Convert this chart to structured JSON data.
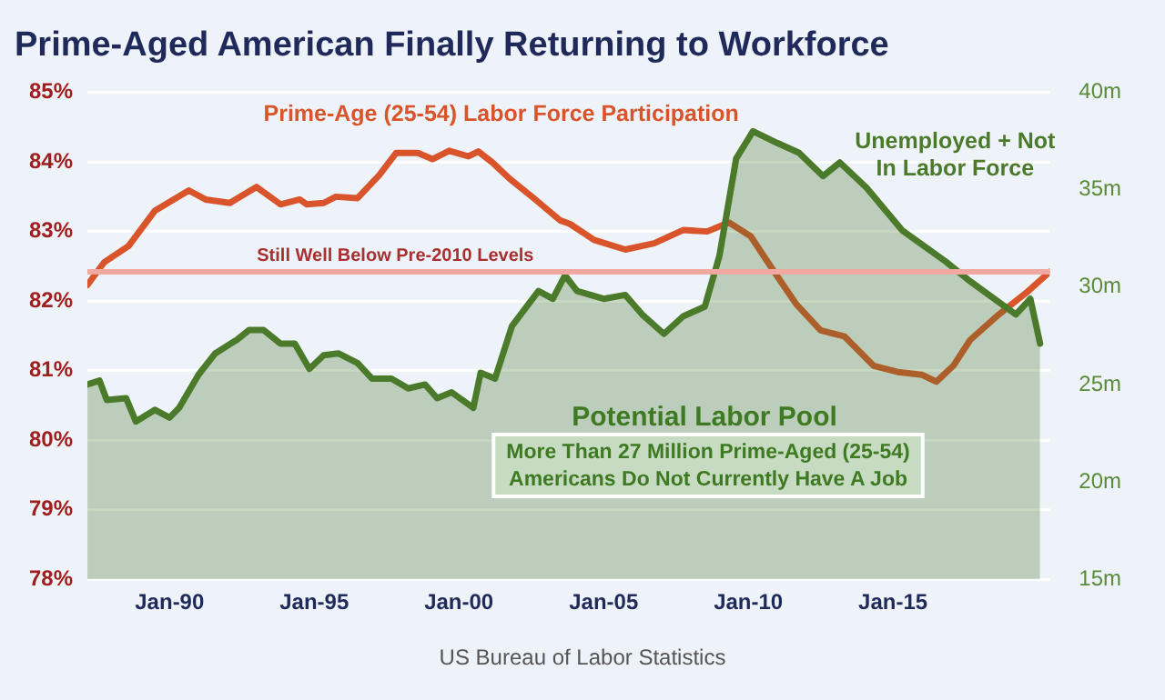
{
  "chart_data": {
    "type": "line",
    "title": "Prime-Aged American Finally Returning to Workforce",
    "xlim": [
      "1987-03",
      "2020-06"
    ],
    "xticks": [
      {
        "value": "1990-01",
        "label": "Jan-90"
      },
      {
        "value": "1995-01",
        "label": "Jan-95"
      },
      {
        "value": "2000-01",
        "label": "Jan-00"
      },
      {
        "value": "2005-01",
        "label": "Jan-05"
      },
      {
        "value": "2010-01",
        "label": "Jan-10"
      },
      {
        "value": "2015-01",
        "label": "Jan-15"
      }
    ],
    "ylim": [
      78,
      85
    ],
    "yticks": [
      {
        "value": 78,
        "label": "78%"
      },
      {
        "value": 79,
        "label": "79%"
      },
      {
        "value": 80,
        "label": "80%"
      },
      {
        "value": 81,
        "label": "81%"
      },
      {
        "value": 82,
        "label": "82%"
      },
      {
        "value": 83,
        "label": "83%"
      },
      {
        "value": 84,
        "label": "84%"
      },
      {
        "value": 85,
        "label": "85%"
      }
    ],
    "y2lim": [
      15,
      40
    ],
    "y2ticks": [
      {
        "value": 15,
        "label": "15m"
      },
      {
        "value": 20,
        "label": "20m"
      },
      {
        "value": 25,
        "label": "25m"
      },
      {
        "value": 30,
        "label": "30m"
      },
      {
        "value": 35,
        "label": "35m"
      },
      {
        "value": 40,
        "label": "40m"
      }
    ],
    "grid": "y",
    "legend": false,
    "marker": "none",
    "series": [
      {
        "type": "area",
        "axis": "y2",
        "name": "Unemployed + Not In Labor Force",
        "color": "#4a7a2a",
        "x": [
          "1987-03",
          "1987-08",
          "1987-11",
          "1988-07",
          "1988-11",
          "1989-07",
          "1990-01",
          "1990-05",
          "1991-01",
          "1991-08",
          "1992-05",
          "1992-10",
          "1993-04",
          "1993-11",
          "1994-05",
          "1994-11",
          "1995-05",
          "1995-11",
          "1996-07",
          "1997-01",
          "1997-09",
          "1998-04",
          "1998-11",
          "1999-04",
          "1999-10",
          "2000-07",
          "2000-10",
          "2001-04",
          "2001-11",
          "2002-10",
          "2003-04",
          "2003-09",
          "2004-02",
          "2005-01",
          "2005-10",
          "2006-05",
          "2007-02",
          "2007-10",
          "2008-07",
          "2009-01",
          "2009-08",
          "2010-03",
          "2011-01",
          "2011-10",
          "2012-08",
          "2013-03",
          "2014-02",
          "2015-05",
          "2016-02",
          "2016-11",
          "2017-09",
          "2018-07",
          "2019-04",
          "2019-10",
          "2020-02"
        ],
        "values": [
          25.0,
          25.2,
          24.2,
          24.3,
          23.1,
          23.7,
          23.3,
          23.8,
          25.5,
          26.6,
          27.3,
          27.8,
          27.8,
          27.1,
          27.1,
          25.8,
          26.5,
          26.6,
          26.1,
          25.3,
          25.3,
          24.8,
          25.0,
          24.3,
          24.6,
          23.8,
          25.6,
          25.3,
          28.0,
          29.8,
          29.4,
          30.6,
          29.8,
          29.4,
          29.6,
          28.6,
          27.6,
          28.5,
          29.0,
          31.6,
          36.6,
          38.0,
          37.4,
          36.9,
          35.7,
          36.4,
          35.1,
          32.9,
          32.1,
          31.3,
          30.3,
          29.4,
          28.6,
          29.4,
          27.1
        ]
      },
      {
        "type": "line",
        "name": "Prime-Age (25-54) Labor Force Participation",
        "color": "#d9542b",
        "x": [
          "1987-03",
          "1987-10",
          "1988-08",
          "1989-07",
          "1990-09",
          "1991-04",
          "1992-02",
          "1993-01",
          "1993-11",
          "1994-07",
          "1994-10",
          "1995-05",
          "1995-10",
          "1996-07",
          "1997-04",
          "1997-11",
          "1998-08",
          "1999-02",
          "1999-09",
          "2000-05",
          "2000-09",
          "2001-03",
          "2001-10",
          "2002-08",
          "2003-07",
          "2003-11",
          "2004-09",
          "2005-10",
          "2006-10",
          "2007-10",
          "2008-08",
          "2009-05",
          "2010-02",
          "2010-11",
          "2011-09",
          "2012-07",
          "2013-05",
          "2014-05",
          "2015-03",
          "2016-01",
          "2016-07",
          "2017-02",
          "2017-09",
          "2018-09",
          "2019-09",
          "2020-06"
        ],
        "values": [
          82.23,
          82.56,
          82.79,
          83.3,
          83.59,
          83.46,
          83.41,
          83.64,
          83.39,
          83.46,
          83.39,
          83.41,
          83.5,
          83.48,
          83.81,
          84.13,
          84.13,
          84.04,
          84.16,
          84.08,
          84.15,
          83.99,
          83.76,
          83.48,
          83.16,
          83.11,
          82.88,
          82.74,
          82.83,
          83.02,
          83.0,
          83.13,
          82.93,
          82.46,
          81.95,
          81.58,
          81.49,
          81.07,
          80.98,
          80.94,
          80.84,
          81.07,
          81.44,
          81.81,
          82.14,
          82.42
        ]
      }
    ],
    "ref_lines": [
      {
        "axis": "y",
        "value": 82.42,
        "label": "Still Well Below Pre-2010 Levels",
        "color": "#f0a8a0"
      }
    ],
    "annotations": [
      "Potential Labor Pool",
      "More Than 27 Million Prime-Aged (25-54) Americans Do Not Currently Have A Job",
      "US Bureau of Labor Statistics"
    ]
  }
}
